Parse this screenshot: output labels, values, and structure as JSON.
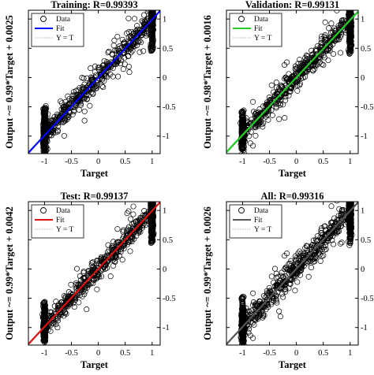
{
  "figure": {
    "colors": {
      "frame": "#000000",
      "marker": "#000000",
      "ideal": "#b0b0b0",
      "background": "#ffffff"
    }
  },
  "chart_data": [
    {
      "type": "scatter",
      "title": "Training: R=0.99393",
      "xlabel": "Target",
      "ylabel": "Output ~= 0.99*Target + 0.0025",
      "xlim": [
        -1.3,
        1.15
      ],
      "ylim": [
        -1.3,
        1.15
      ],
      "xticks": [
        -1,
        -0.5,
        0,
        0.5,
        1
      ],
      "xticklabels": [
        "-1",
        "-0.5",
        "0",
        "0.5",
        "1"
      ],
      "yticks": [
        -1,
        -0.5,
        0,
        0.5,
        1
      ],
      "yticklabels": [
        "-1",
        "-0.5",
        "0",
        "0.5",
        "1"
      ],
      "fit": {
        "slope": 0.99,
        "intercept": 0.0025,
        "color": "#0000ff"
      },
      "legend": {
        "position": "top-left",
        "entries": [
          "Data",
          "Fit",
          "Y = T"
        ]
      },
      "r": 0.99393,
      "clusters": [
        {
          "target": -1,
          "spread": 0.28
        },
        {
          "target": 1,
          "spread": 0.28
        }
      ],
      "noise": 0.09,
      "outlier_rate": 0.12
    },
    {
      "type": "scatter",
      "title": "Validation: R=0.99131",
      "xlabel": "Target",
      "ylabel": "Output ~= 0.98*Target + 0.0016",
      "xlim": [
        -1.3,
        1.15
      ],
      "ylim": [
        -1.3,
        1.15
      ],
      "xticks": [
        -1,
        -0.5,
        0,
        0.5,
        1
      ],
      "xticklabels": [
        "-1",
        "-0.5",
        "0",
        "0.5",
        "1"
      ],
      "yticks": [
        -1,
        -0.5,
        0,
        0.5,
        1
      ],
      "yticklabels": [
        "-1",
        "-0.5",
        "0",
        "0.5",
        "1"
      ],
      "fit": {
        "slope": 0.98,
        "intercept": 0.0016,
        "color": "#22cc22"
      },
      "legend": {
        "position": "top-left",
        "entries": [
          "Data",
          "Fit",
          "Y = T"
        ]
      },
      "r": 0.99131,
      "clusters": [
        {
          "target": -1,
          "spread": 0.25
        },
        {
          "target": 1,
          "spread": 0.3
        }
      ],
      "noise": 0.08,
      "outlier_rate": 0.1
    },
    {
      "type": "scatter",
      "title": "Test: R=0.99137",
      "xlabel": "Target",
      "ylabel": "Output ~= 0.99*Target + 0.0042",
      "xlim": [
        -1.3,
        1.15
      ],
      "ylim": [
        -1.3,
        1.15
      ],
      "xticks": [
        -1,
        -0.5,
        0,
        0.5,
        1
      ],
      "xticklabels": [
        "-1",
        "-0.5",
        "0",
        "0.5",
        "1"
      ],
      "yticks": [
        -1,
        -0.5,
        0,
        0.5,
        1
      ],
      "yticklabels": [
        "-1",
        "-0.5",
        "0",
        "0.5",
        "1"
      ],
      "fit": {
        "slope": 0.99,
        "intercept": 0.0042,
        "color": "#dd1111"
      },
      "legend": {
        "position": "top-left",
        "entries": [
          "Data",
          "Fit",
          "Y = T"
        ]
      },
      "r": 0.99137,
      "clusters": [
        {
          "target": -1,
          "spread": 0.25
        },
        {
          "target": 1,
          "spread": 0.28
        }
      ],
      "noise": 0.08,
      "outlier_rate": 0.1
    },
    {
      "type": "scatter",
      "title": "All: R=0.99316",
      "xlabel": "Target",
      "ylabel": "Output ~= 0.99*Target + 0.0026",
      "xlim": [
        -1.3,
        1.15
      ],
      "ylim": [
        -1.3,
        1.15
      ],
      "xticks": [
        -1,
        -0.5,
        0,
        0.5,
        1
      ],
      "xticklabels": [
        "-1",
        "-0.5",
        "0",
        "0.5",
        "1"
      ],
      "yticks": [
        -1,
        -0.5,
        0,
        0.5,
        1
      ],
      "yticklabels": [
        "-1",
        "-0.5",
        "0",
        "0.5",
        "1"
      ],
      "fit": {
        "slope": 0.99,
        "intercept": 0.0026,
        "color": "#555555"
      },
      "legend": {
        "position": "top-left",
        "entries": [
          "Data",
          "Fit",
          "Y = T"
        ]
      },
      "r": 0.99316,
      "clusters": [
        {
          "target": -1,
          "spread": 0.3
        },
        {
          "target": 1,
          "spread": 0.3
        }
      ],
      "noise": 0.09,
      "outlier_rate": 0.12
    }
  ]
}
